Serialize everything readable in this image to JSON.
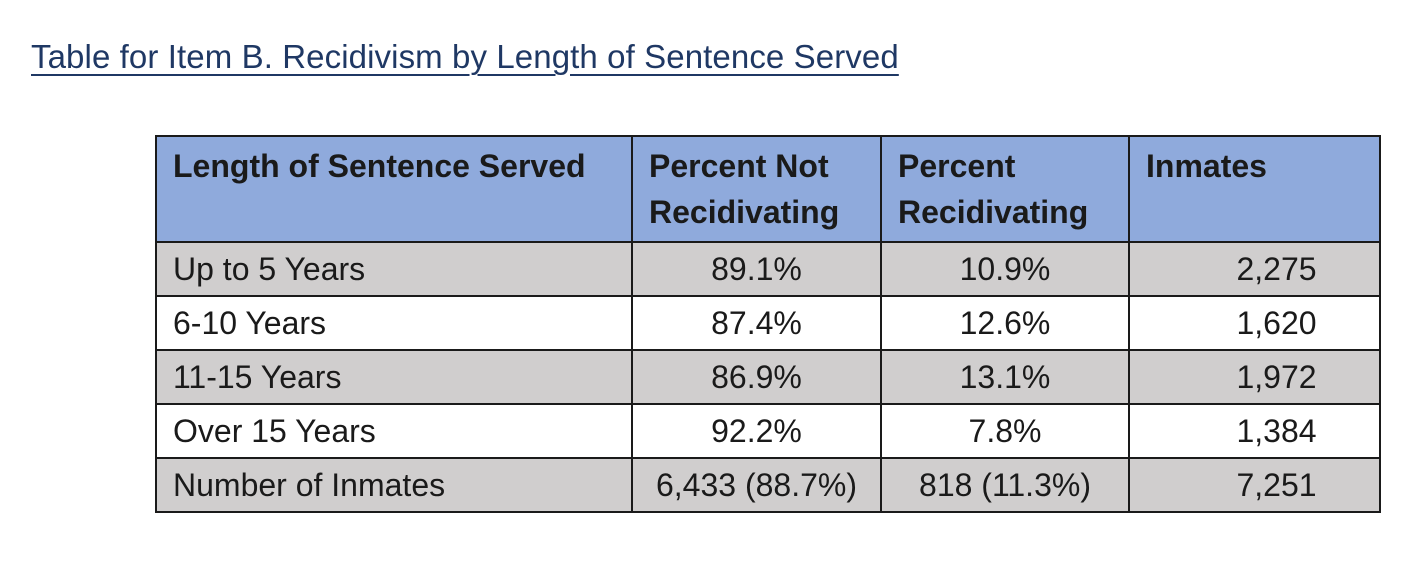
{
  "document": {
    "title": "Table for Item B. Recidivism by Length of Sentence Served"
  },
  "table": {
    "headers": [
      "Length of Sentence Served",
      "Percent Not Recidivating",
      "Percent Recidivating",
      "Inmates"
    ],
    "rows": [
      {
        "length": "Up to 5 Years",
        "not_recidivating": "89.1%",
        "recidivating": "10.9%",
        "inmates": "2,275",
        "shaded": true
      },
      {
        "length": "6-10 Years",
        "not_recidivating": "87.4%",
        "recidivating": "12.6%",
        "inmates": "1,620",
        "shaded": false
      },
      {
        "length": "11-15 Years",
        "not_recidivating": "86.9%",
        "recidivating": "13.1%",
        "inmates": "1,972",
        "shaded": true
      },
      {
        "length": "Over 15 Years",
        "not_recidivating": "92.2%",
        "recidivating": "7.8%",
        "inmates": "1,384",
        "shaded": false
      },
      {
        "length": "Number of Inmates",
        "not_recidivating": "6,433 (88.7%)",
        "recidivating": "818 (11.3%)",
        "inmates": "7,251",
        "shaded": true
      }
    ]
  },
  "colors": {
    "title": "#1f3864",
    "header_background": "#8faadc",
    "shaded_row_background": "#d0cece",
    "border": "#1a1a1a"
  }
}
